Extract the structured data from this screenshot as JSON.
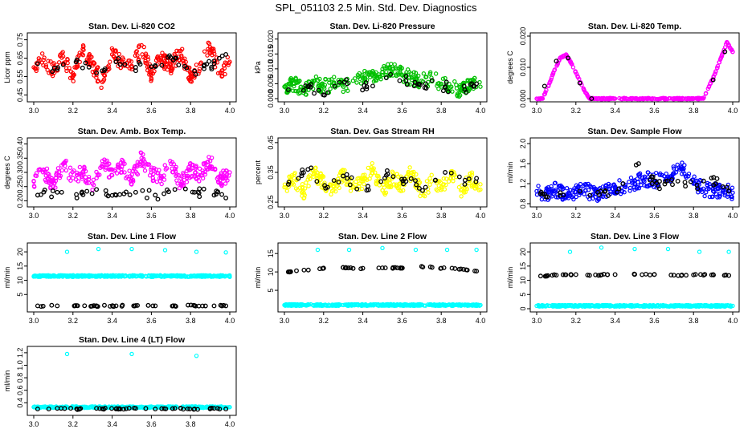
{
  "page_title": "SPL_051103  2.5 Min. Std. Dev. Diagnostics",
  "colors": {
    "black": "#000000",
    "red": "#ff0000",
    "green": "#00c000",
    "magenta": "#ff00ff",
    "yellow": "#ffff00",
    "blue": "#0000ff",
    "cyan": "#00ffff"
  },
  "chart_data": [
    {
      "type": "scatter",
      "title": "Stan. Dev. Li-820 CO2",
      "xlabel": "",
      "ylabel": "Licor ppm",
      "color": "#ff0000",
      "xlim": [
        3.0,
        4.0
      ],
      "ylim": [
        0.43,
        0.77
      ],
      "x_ticks": [
        "3.0",
        "3.2",
        "3.4",
        "3.6",
        "3.8",
        "4.0"
      ],
      "y_ticks": [
        "0.45",
        "0.55",
        "0.65",
        "0.75"
      ],
      "series": [
        {
          "x": [
            3.0,
            3.05,
            3.1,
            3.15,
            3.2,
            3.25,
            3.3,
            3.35,
            3.4,
            3.45,
            3.5,
            3.55,
            3.6,
            3.65,
            3.7,
            3.75,
            3.8,
            3.85,
            3.9,
            3.95,
            4.0
          ],
          "y": [
            0.6,
            0.64,
            0.58,
            0.66,
            0.55,
            0.7,
            0.61,
            0.52,
            0.67,
            0.63,
            0.59,
            0.72,
            0.56,
            0.65,
            0.6,
            0.69,
            0.54,
            0.62,
            0.71,
            0.57,
            0.63
          ]
        },
        {
          "x": [
            3.02,
            3.12,
            3.22,
            3.32,
            3.42,
            3.52,
            3.62,
            3.72,
            3.82,
            3.92,
            3.98
          ],
          "y": [
            0.62,
            0.59,
            0.64,
            0.57,
            0.63,
            0.6,
            0.61,
            0.65,
            0.58,
            0.62,
            0.67
          ]
        }
      ]
    },
    {
      "type": "scatter",
      "title": "Stan. Dev. Li-820 Pressure",
      "xlabel": "",
      "ylabel": "kPa",
      "color": "#00c000",
      "xlim": [
        3.0,
        4.0
      ],
      "ylim": [
        0.0,
        0.021
      ],
      "x_ticks": [
        "3.0",
        "3.2",
        "3.4",
        "3.6",
        "3.8",
        "4.0"
      ],
      "y_ticks": [
        "0.000",
        "0.005",
        "0.010",
        "0.015",
        "0.020"
      ],
      "series": [
        {
          "x": [
            3.0,
            3.05,
            3.1,
            3.15,
            3.2,
            3.25,
            3.3,
            3.35,
            3.4,
            3.45,
            3.5,
            3.55,
            3.6,
            3.65,
            3.7,
            3.75,
            3.8,
            3.85,
            3.9,
            3.95,
            4.0
          ],
          "y": [
            0.004,
            0.005,
            0.003,
            0.006,
            0.004,
            0.005,
            0.004,
            0.006,
            0.007,
            0.008,
            0.009,
            0.01,
            0.008,
            0.007,
            0.006,
            0.007,
            0.005,
            0.004,
            0.003,
            0.005,
            0.004
          ]
        },
        {
          "x": [
            3.02,
            3.12,
            3.22,
            3.32,
            3.42,
            3.52,
            3.62,
            3.72,
            3.82,
            3.92,
            3.98
          ],
          "y": [
            0.003,
            0.004,
            0.002,
            0.005,
            0.004,
            0.007,
            0.006,
            0.005,
            0.004,
            0.003,
            0.005
          ]
        }
      ]
    },
    {
      "type": "scatter",
      "title": "Stan. Dev. Li-820 Temp.",
      "xlabel": "",
      "ylabel": "degrees C",
      "color": "#ff00ff",
      "xlim": [
        3.0,
        4.0
      ],
      "ylim": [
        0.0,
        0.02
      ],
      "x_ticks": [
        "3.0",
        "3.2",
        "3.4",
        "3.6",
        "3.8",
        "4.0"
      ],
      "y_ticks": [
        "0.000",
        "0.010",
        "0.020"
      ],
      "series": [
        {
          "x": [
            3.0,
            3.03,
            3.06,
            3.09,
            3.12,
            3.15,
            3.18,
            3.21,
            3.24,
            3.27,
            3.3,
            3.4,
            3.5,
            3.6,
            3.7,
            3.8,
            3.85,
            3.88,
            3.91,
            3.94,
            3.97,
            4.0
          ],
          "y": [
            0.0,
            0.0,
            0.004,
            0.009,
            0.013,
            0.014,
            0.011,
            0.007,
            0.003,
            0.0,
            0.0,
            0.0,
            0.0,
            0.0,
            0.0,
            0.0,
            0.0,
            0.004,
            0.008,
            0.013,
            0.018,
            0.015
          ]
        },
        {
          "x": [
            3.04,
            3.1,
            3.16,
            3.22,
            3.28,
            3.9,
            3.96
          ],
          "y": [
            0.004,
            0.012,
            0.013,
            0.005,
            0.0,
            0.006,
            0.015
          ]
        }
      ]
    },
    {
      "type": "scatter",
      "title": "Stan. Dev. Amb. Box Temp.",
      "xlabel": "",
      "ylabel": "degrees C",
      "color": "#ff00ff",
      "xlim": [
        3.0,
        4.0
      ],
      "ylim": [
        0.19,
        0.41
      ],
      "x_ticks": [
        "3.0",
        "3.2",
        "3.4",
        "3.6",
        "3.8",
        "4.0"
      ],
      "y_ticks": [
        "0.20",
        "0.25",
        "0.30",
        "0.35",
        "0.40"
      ],
      "series": [
        {
          "x": [
            3.0,
            3.05,
            3.1,
            3.15,
            3.2,
            3.25,
            3.3,
            3.35,
            3.4,
            3.45,
            3.5,
            3.55,
            3.6,
            3.65,
            3.7,
            3.75,
            3.8,
            3.85,
            3.9,
            3.95,
            4.0
          ],
          "y": [
            0.27,
            0.31,
            0.25,
            0.33,
            0.28,
            0.3,
            0.26,
            0.34,
            0.29,
            0.32,
            0.27,
            0.35,
            0.3,
            0.28,
            0.33,
            0.26,
            0.31,
            0.29,
            0.34,
            0.27,
            0.3
          ]
        },
        {
          "x": [
            3.02,
            3.12,
            3.22,
            3.32,
            3.42,
            3.52,
            3.62,
            3.72,
            3.82,
            3.92,
            3.98
          ],
          "y": [
            0.22,
            0.23,
            0.21,
            0.24,
            0.22,
            0.23,
            0.22,
            0.24,
            0.23,
            0.22,
            0.21
          ]
        }
      ]
    },
    {
      "type": "scatter",
      "title": "Stan. Dev. Gas Stream RH",
      "xlabel": "",
      "ylabel": "percent",
      "color": "#ffff00",
      "xlim": [
        3.0,
        4.0
      ],
      "ylim": [
        0.245,
        0.455
      ],
      "x_ticks": [
        "3.0",
        "3.2",
        "3.4",
        "3.6",
        "3.8",
        "4.0"
      ],
      "y_ticks": [
        "0.25",
        "0.35",
        "0.45"
      ],
      "series": [
        {
          "x": [
            3.0,
            3.05,
            3.1,
            3.15,
            3.2,
            3.25,
            3.3,
            3.35,
            3.4,
            3.45,
            3.5,
            3.55,
            3.6,
            3.65,
            3.7,
            3.75,
            3.8,
            3.85,
            3.9,
            3.95,
            4.0
          ],
          "y": [
            0.3,
            0.33,
            0.28,
            0.35,
            0.31,
            0.29,
            0.34,
            0.3,
            0.32,
            0.36,
            0.29,
            0.33,
            0.31,
            0.35,
            0.28,
            0.32,
            0.3,
            0.34,
            0.29,
            0.33,
            0.31
          ]
        },
        {
          "x": [
            3.02,
            3.12,
            3.22,
            3.32,
            3.42,
            3.52,
            3.62,
            3.72,
            3.82,
            3.92,
            3.98
          ],
          "y": [
            0.31,
            0.36,
            0.3,
            0.33,
            0.29,
            0.34,
            0.32,
            0.3,
            0.35,
            0.31,
            0.33
          ]
        }
      ]
    },
    {
      "type": "scatter",
      "title": "Stan. Dev. Sample Flow",
      "xlabel": "",
      "ylabel": "ml/min",
      "color": "#0000ff",
      "xlim": [
        3.0,
        4.0
      ],
      "ylim": [
        0.8,
        2.05
      ],
      "x_ticks": [
        "3.0",
        "3.2",
        "3.4",
        "3.6",
        "3.8",
        "4.0"
      ],
      "y_ticks": [
        "0.8",
        "1.2",
        "1.6",
        "2.0"
      ],
      "series": [
        {
          "x": [
            3.0,
            3.05,
            3.1,
            3.15,
            3.2,
            3.25,
            3.3,
            3.35,
            3.4,
            3.45,
            3.5,
            3.55,
            3.6,
            3.65,
            3.7,
            3.75,
            3.8,
            3.85,
            3.9,
            3.95,
            4.0
          ],
          "y": [
            1.05,
            1.0,
            1.08,
            0.98,
            1.03,
            1.06,
            1.0,
            1.04,
            1.1,
            1.15,
            1.2,
            1.3,
            1.25,
            1.35,
            1.4,
            1.5,
            1.2,
            1.1,
            1.05,
            1.08,
            1.02
          ]
        },
        {
          "x": [
            3.02,
            3.12,
            3.22,
            3.32,
            3.42,
            3.52,
            3.62,
            3.72,
            3.82,
            3.92,
            3.98
          ],
          "y": [
            1.0,
            1.02,
            1.05,
            0.98,
            1.1,
            1.6,
            1.15,
            1.25,
            1.1,
            1.3,
            1.05
          ]
        }
      ]
    },
    {
      "type": "scatter",
      "title": "Stan. Dev. Line 1 Flow",
      "xlabel": "",
      "ylabel": "ml/min",
      "color": "#00ffff",
      "xlim": [
        3.0,
        4.0
      ],
      "ylim": [
        0.0,
        22.0
      ],
      "x_ticks": [
        "3.0",
        "3.2",
        "3.4",
        "3.6",
        "3.8",
        "4.0"
      ],
      "y_ticks": [
        "5",
        "10",
        "15",
        "20"
      ],
      "series": [
        {
          "x": [
            3.0,
            3.1,
            3.2,
            3.3,
            3.4,
            3.5,
            3.6,
            3.7,
            3.8,
            3.9,
            4.0,
            3.17,
            3.33,
            3.5,
            3.67,
            3.83,
            3.98
          ],
          "y": [
            11.3,
            11.5,
            11.2,
            11.4,
            11.3,
            11.5,
            11.2,
            11.4,
            11.3,
            11.5,
            11.2,
            20.0,
            21.0,
            21.0,
            20.6,
            20.0,
            19.8
          ]
        },
        {
          "x": [
            3.02,
            3.12,
            3.22,
            3.32,
            3.42,
            3.52,
            3.62,
            3.72,
            3.82,
            3.92,
            3.98
          ],
          "y": [
            1.0,
            1.0,
            1.1,
            1.0,
            1.0,
            1.1,
            1.0,
            1.0,
            1.1,
            1.0,
            1.0
          ]
        }
      ]
    },
    {
      "type": "scatter",
      "title": "Stan. Dev. Line 2 Flow",
      "xlabel": "",
      "ylabel": "ml/min",
      "color": "#00ffff",
      "xlim": [
        3.0,
        4.0
      ],
      "ylim": [
        0.0,
        17.0
      ],
      "x_ticks": [
        "3.0",
        "3.2",
        "3.4",
        "3.6",
        "3.8",
        "4.0"
      ],
      "y_ticks": [
        "5",
        "10",
        "15"
      ],
      "series": [
        {
          "x": [
            3.0,
            3.1,
            3.2,
            3.3,
            3.4,
            3.5,
            3.6,
            3.7,
            3.8,
            3.9,
            4.0,
            3.17,
            3.33,
            3.5,
            3.67,
            3.83,
            3.98
          ],
          "y": [
            1.0,
            1.0,
            1.0,
            1.0,
            1.0,
            1.0,
            1.0,
            1.0,
            1.0,
            1.0,
            1.0,
            16.0,
            16.0,
            16.5,
            16.0,
            16.0,
            16.0
          ]
        },
        {
          "x": [
            3.02,
            3.1,
            3.2,
            3.3,
            3.4,
            3.5,
            3.6,
            3.7,
            3.8,
            3.9,
            3.98
          ],
          "y": [
            10.0,
            10.5,
            11.0,
            11.2,
            11.0,
            11.1,
            11.0,
            11.5,
            11.0,
            10.8,
            10.2
          ]
        }
      ]
    },
    {
      "type": "scatter",
      "title": "Stan. Dev. Line 3 Flow",
      "xlabel": "",
      "ylabel": "ml/min",
      "color": "#00ffff",
      "xlim": [
        3.0,
        4.0
      ],
      "ylim": [
        0.0,
        22.0
      ],
      "x_ticks": [
        "3.0",
        "3.2",
        "3.4",
        "3.6",
        "3.8",
        "4.0"
      ],
      "y_ticks": [
        "0",
        "5",
        "10",
        "15",
        "20"
      ],
      "series": [
        {
          "x": [
            3.0,
            3.1,
            3.2,
            3.3,
            3.4,
            3.5,
            3.6,
            3.7,
            3.8,
            3.9,
            4.0,
            3.17,
            3.33,
            3.5,
            3.67,
            3.83,
            3.98
          ],
          "y": [
            1.0,
            1.0,
            1.0,
            1.0,
            1.0,
            1.0,
            1.0,
            1.0,
            1.0,
            1.0,
            1.0,
            20.0,
            21.5,
            21.0,
            21.0,
            20.0,
            20.0
          ]
        },
        {
          "x": [
            3.02,
            3.1,
            3.2,
            3.3,
            3.4,
            3.5,
            3.6,
            3.7,
            3.8,
            3.9,
            3.98
          ],
          "y": [
            11.5,
            11.8,
            12.0,
            11.9,
            12.0,
            12.1,
            12.0,
            11.8,
            11.9,
            12.0,
            11.7
          ]
        }
      ]
    },
    {
      "type": "scatter",
      "title": "Stan. Dev. Line 4 (LT) Flow",
      "xlabel": "",
      "ylabel": "ml/min",
      "color": "#00ffff",
      "xlim": [
        3.0,
        4.0
      ],
      "ylim": [
        0.25,
        1.25
      ],
      "x_ticks": [
        "3.0",
        "3.2",
        "3.4",
        "3.6",
        "3.8",
        "4.0"
      ],
      "y_ticks": [
        "0.4",
        "0.6",
        "0.8",
        "1.0",
        "1.2"
      ],
      "series": [
        {
          "x": [
            3.0,
            3.1,
            3.2,
            3.3,
            3.4,
            3.5,
            3.6,
            3.7,
            3.8,
            3.9,
            4.0,
            3.17,
            3.5,
            3.83
          ],
          "y": [
            0.33,
            0.32,
            0.34,
            0.33,
            0.32,
            0.33,
            0.34,
            0.32,
            0.33,
            0.34,
            0.33,
            1.18,
            1.18,
            1.15
          ]
        },
        {
          "x": [
            3.02,
            3.12,
            3.22,
            3.32,
            3.42,
            3.52,
            3.62,
            3.72,
            3.82,
            3.92,
            3.98
          ],
          "y": [
            0.3,
            0.31,
            0.3,
            0.31,
            0.3,
            0.31,
            0.3,
            0.31,
            0.3,
            0.31,
            0.3
          ]
        }
      ]
    }
  ]
}
